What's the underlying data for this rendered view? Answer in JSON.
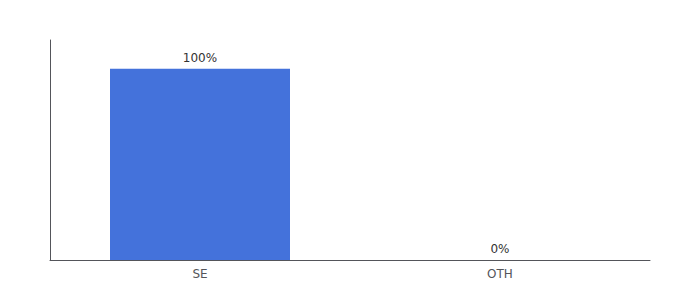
{
  "chart_data": {
    "type": "bar",
    "categories": [
      "SE",
      "OTH"
    ],
    "values": [
      100,
      0
    ],
    "value_labels": [
      "100%",
      "0%"
    ],
    "color": "#4472DB",
    "ylim": [
      0,
      115
    ],
    "data_labels": true,
    "tick_labels": "x",
    "grid": false
  }
}
